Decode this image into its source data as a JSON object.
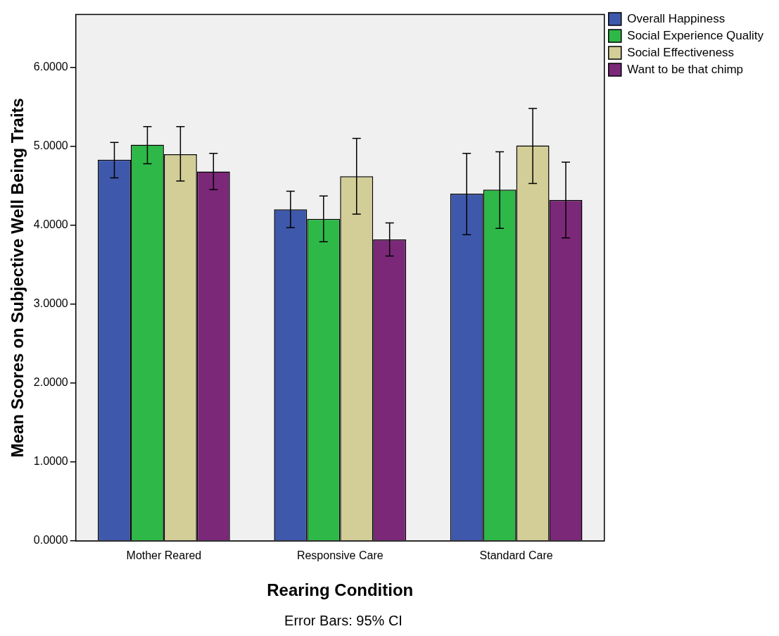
{
  "chart_data": {
    "type": "bar",
    "xlabel": "Rearing Condition",
    "ylabel": "Mean Scores on Subjective Well Being Traits",
    "categories": [
      "Mother Reared",
      "Responsive Care",
      "Standard Care"
    ],
    "series": [
      {
        "name": "Overall Happiness",
        "color": "#3e58ac",
        "values": [
          4.83,
          4.2,
          4.4
        ],
        "errors": [
          [
            4.6,
            5.05
          ],
          [
            3.97,
            4.43
          ],
          [
            3.88,
            4.91
          ]
        ]
      },
      {
        "name": "Social Experience Quality",
        "color": "#2eb848",
        "values": [
          5.02,
          4.08,
          4.45
        ],
        "errors": [
          [
            4.78,
            5.25
          ],
          [
            3.79,
            4.37
          ],
          [
            3.96,
            4.93
          ]
        ]
      },
      {
        "name": "Social Effectiveness",
        "color": "#d3ce97",
        "values": [
          4.9,
          4.62,
          5.01
        ],
        "errors": [
          [
            4.56,
            5.25
          ],
          [
            4.14,
            5.1
          ],
          [
            4.53,
            5.48
          ]
        ]
      },
      {
        "name": "Want to be that chimp",
        "color": "#7b2879",
        "values": [
          4.68,
          3.82,
          4.32
        ],
        "errors": [
          [
            4.45,
            4.91
          ],
          [
            3.61,
            4.03
          ],
          [
            3.84,
            4.8
          ]
        ]
      }
    ],
    "ylim": [
      0,
      6.67
    ],
    "yticks": [
      {
        "value": 0,
        "label": "0.0000"
      },
      {
        "value": 1,
        "label": "1.0000"
      },
      {
        "value": 2,
        "label": "2.0000"
      },
      {
        "value": 3,
        "label": "3.0000"
      },
      {
        "value": 4,
        "label": "4.0000"
      },
      {
        "value": 5,
        "label": "5.0000"
      },
      {
        "value": 6,
        "label": "6.0000"
      }
    ],
    "legend": "right",
    "annotations": [
      "Error Bars: 95% CI"
    ]
  }
}
